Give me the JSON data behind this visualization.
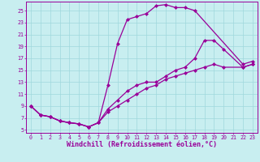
{
  "xlabel": "Windchill (Refroidissement éolien,°C)",
  "xlim": [
    -0.5,
    23.5
  ],
  "ylim": [
    4.5,
    26.5
  ],
  "xticks": [
    0,
    1,
    2,
    3,
    4,
    5,
    6,
    7,
    8,
    9,
    10,
    11,
    12,
    13,
    14,
    15,
    16,
    17,
    18,
    19,
    20,
    21,
    22,
    23
  ],
  "yticks": [
    5,
    7,
    9,
    11,
    13,
    15,
    17,
    19,
    21,
    23,
    25
  ],
  "bg_color": "#c8eef0",
  "grid_color": "#9fd8dc",
  "line_color": "#990099",
  "curve1_x": [
    0,
    1,
    2,
    3,
    4,
    5,
    6,
    7,
    8,
    9,
    10,
    11,
    12,
    13,
    14,
    15,
    16,
    17,
    22,
    23
  ],
  "curve1_y": [
    9.0,
    7.5,
    7.2,
    6.5,
    6.2,
    6.0,
    5.5,
    6.2,
    12.5,
    19.5,
    23.5,
    24.0,
    24.5,
    25.8,
    26.0,
    25.5,
    25.5,
    25.0,
    16.0,
    16.5
  ],
  "curve2_x": [
    0,
    1,
    2,
    3,
    4,
    5,
    6,
    7,
    8,
    9,
    10,
    11,
    12,
    13,
    14,
    15,
    16,
    17,
    18,
    19,
    20,
    22,
    23
  ],
  "curve2_y": [
    9.0,
    7.5,
    7.2,
    6.5,
    6.2,
    6.0,
    5.5,
    6.2,
    8.5,
    10.0,
    11.5,
    12.5,
    13.0,
    13.0,
    14.0,
    15.0,
    15.5,
    17.0,
    20.0,
    20.0,
    18.5,
    15.5,
    16.0
  ],
  "curve3_x": [
    0,
    1,
    2,
    3,
    4,
    5,
    6,
    7,
    8,
    9,
    10,
    11,
    12,
    13,
    14,
    15,
    16,
    17,
    18,
    19,
    20,
    22,
    23
  ],
  "curve3_y": [
    9.0,
    7.5,
    7.2,
    6.5,
    6.2,
    6.0,
    5.5,
    6.2,
    8.0,
    9.0,
    10.0,
    11.0,
    12.0,
    12.5,
    13.5,
    14.0,
    14.5,
    15.0,
    15.5,
    16.0,
    15.5,
    15.5,
    16.0
  ],
  "markersize": 2.5,
  "linewidth": 0.9,
  "tick_fontsize": 4.8,
  "label_fontsize": 6.0
}
